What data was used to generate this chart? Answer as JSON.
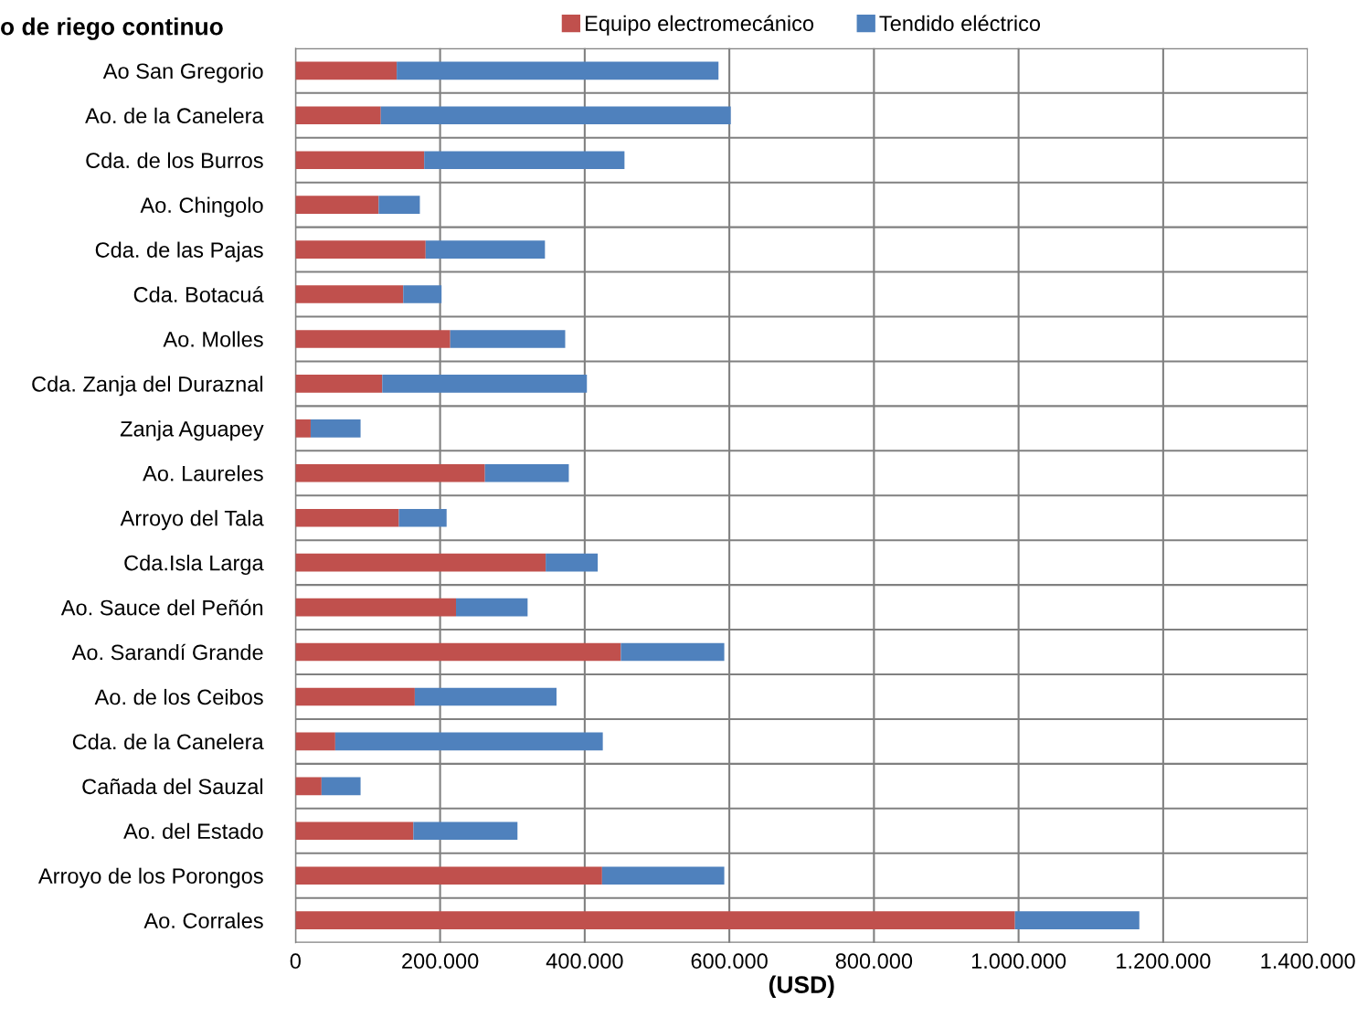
{
  "chart_data": {
    "type": "bar",
    "orientation": "horizontal",
    "stacked": true,
    "title": "o de riego continuo",
    "xlabel": "(USD)",
    "categories": [
      "Ao San Gregorio",
      "Ao. de la Canelera",
      "Cda. de los Burros",
      "Ao. Chingolo",
      "Cda. de las Pajas",
      "Cda. Botacuá",
      "Ao. Molles",
      "Cda. Zanja del Duraznal",
      "Zanja Aguapey",
      "Ao. Laureles",
      "Arroyo del Tala",
      "Cda.Isla Larga",
      "Ao. Sauce del Peñón",
      "Ao. Sarandí Grande",
      "Ao. de los Ceibos",
      "Cda. de la Canelera",
      "Cañada del Sauzal",
      "Ao. del Estado",
      "Arroyo de los Porongos",
      "Ao. Corrales"
    ],
    "series": [
      {
        "name": "Equipo electromecánico",
        "color": "#c0504d",
        "values": [
          140000,
          118000,
          178000,
          115000,
          180000,
          149000,
          214000,
          120000,
          21000,
          262000,
          143000,
          346000,
          222000,
          450000,
          165000,
          55000,
          36000,
          163000,
          424000,
          995000
        ]
      },
      {
        "name": "Tendido eléctrico",
        "color": "#4f81bd",
        "values": [
          445000,
          484000,
          277000,
          57000,
          165000,
          53000,
          159000,
          283000,
          69000,
          116000,
          66000,
          72000,
          99000,
          143000,
          196000,
          370000,
          54000,
          144000,
          169000,
          172000
        ]
      }
    ],
    "xlim": [
      0,
      1400000
    ],
    "xticks": [
      0,
      {
        "value": 200000,
        "label": "200.000"
      },
      {
        "value": 400000,
        "label": "400.000"
      },
      {
        "value": 600000,
        "label": "600.000"
      },
      {
        "value": 800000,
        "label": "800.000"
      },
      {
        "value": 1000000,
        "label": "1.000.000"
      },
      {
        "value": 1200000,
        "label": "1.200.000"
      },
      {
        "value": 1400000,
        "label": "1.400.000"
      }
    ],
    "grid": true,
    "legend": "top"
  }
}
